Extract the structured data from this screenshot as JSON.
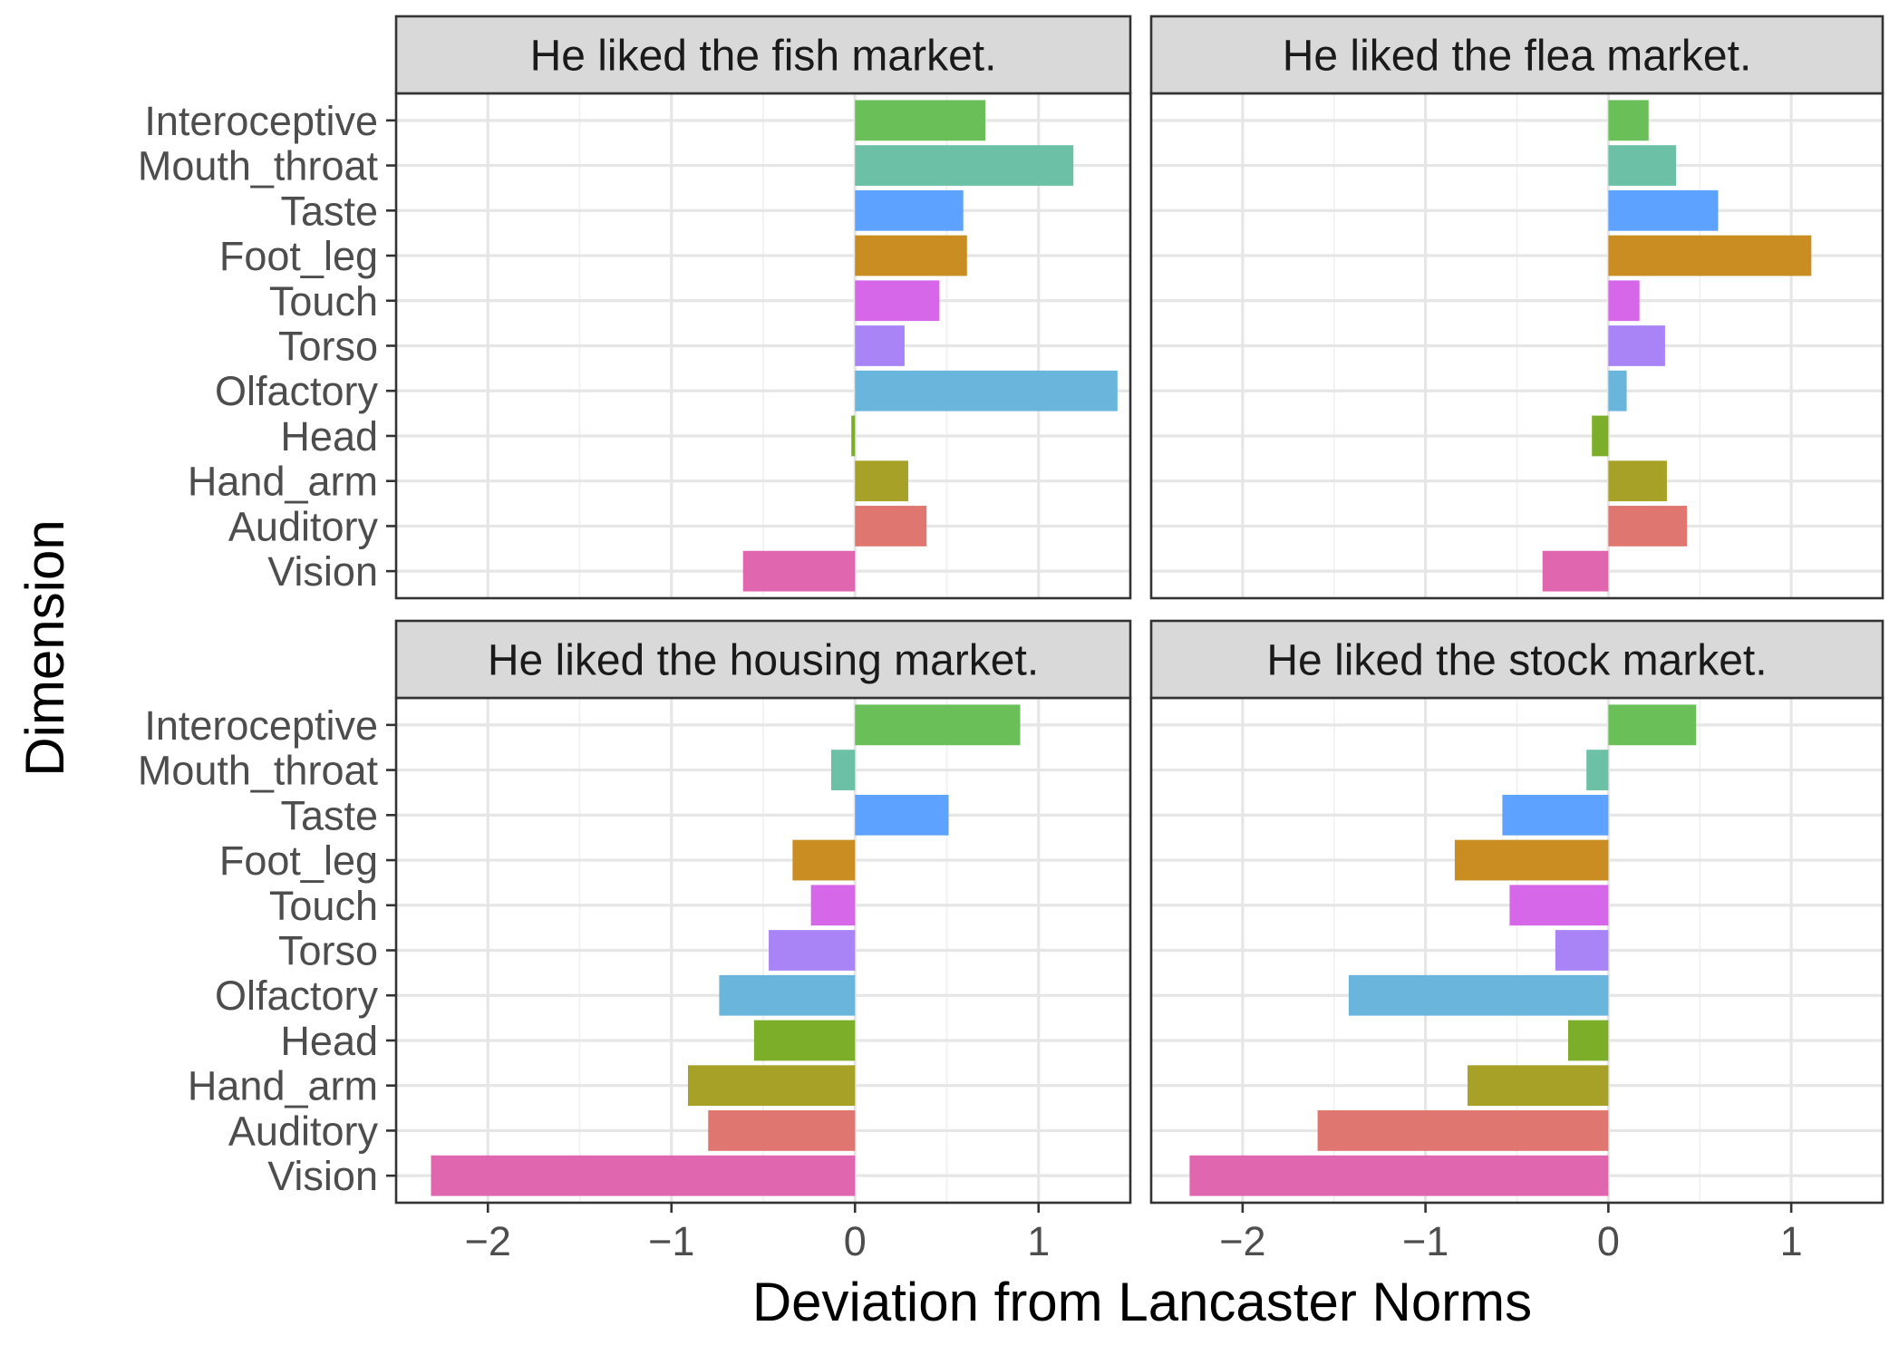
{
  "chart_data": {
    "type": "bar",
    "orientation": "horizontal",
    "xlabel": "Deviation from Lancaster Norms",
    "ylabel": "Dimension",
    "xlim": [
      -2.5,
      1.5
    ],
    "x_ticks": [
      -2,
      -1,
      0,
      1
    ],
    "x_tick_labels": [
      "−2",
      "−1",
      "0",
      "1"
    ],
    "grid": true,
    "legend": "none",
    "categories": [
      "Interoceptive",
      "Mouth_throat",
      "Taste",
      "Foot_leg",
      "Touch",
      "Torso",
      "Olfactory",
      "Head",
      "Hand_arm",
      "Auditory",
      "Vision"
    ],
    "colors": {
      "Interoceptive": "#6BBF59",
      "Mouth_throat": "#6CC0A6",
      "Taste": "#5EA2FF",
      "Foot_leg": "#C98D22",
      "Touch": "#D567E8",
      "Torso": "#A984F7",
      "Olfactory": "#69B5DC",
      "Head": "#7DAE2A",
      "Hand_arm": "#A7A227",
      "Auditory": "#DF7670",
      "Vision": "#E066B0"
    },
    "panels": [
      {
        "title": "He liked the fish market.",
        "values": [
          0.71,
          1.19,
          0.59,
          0.61,
          0.46,
          0.27,
          1.43,
          -0.02,
          0.29,
          0.39,
          -0.61
        ]
      },
      {
        "title": "He liked the flea market.",
        "values": [
          0.22,
          0.37,
          0.6,
          1.11,
          0.17,
          0.31,
          0.1,
          -0.09,
          0.32,
          0.43,
          -0.36
        ]
      },
      {
        "title": "He liked the housing market.",
        "values": [
          0.9,
          -0.13,
          0.51,
          -0.34,
          -0.24,
          -0.47,
          -0.74,
          -0.55,
          -0.91,
          -0.8,
          -2.31
        ]
      },
      {
        "title": "He liked the stock market.",
        "values": [
          0.48,
          -0.12,
          -0.58,
          -0.84,
          -0.54,
          -0.29,
          -1.42,
          -0.22,
          -0.77,
          -1.59,
          -2.29
        ]
      }
    ]
  }
}
